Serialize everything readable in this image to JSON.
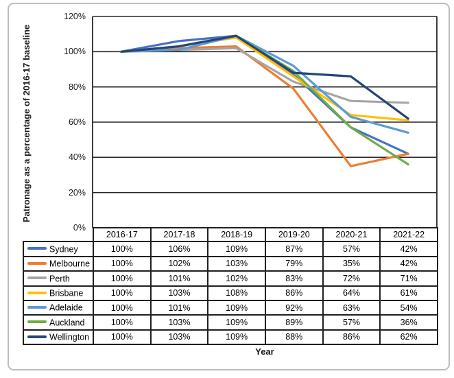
{
  "figure": {
    "background": "#ffffff",
    "border_color": "#bdbdbd"
  },
  "chart_data": {
    "type": "line",
    "title": "",
    "xlabel": "Year",
    "ylabel": "Patronage as a percentage of 2016-17 baseline",
    "categories": [
      "2016-17",
      "2017-18",
      "2018-19",
      "2019-20",
      "2020-21",
      "2021-22"
    ],
    "series": [
      {
        "name": "Sydney",
        "color": "#4472C4",
        "values": [
          100,
          106,
          109,
          87,
          57,
          42
        ]
      },
      {
        "name": "Melbourne",
        "color": "#ED7D31",
        "values": [
          100,
          102,
          103,
          79,
          35,
          42
        ]
      },
      {
        "name": "Perth",
        "color": "#A5A5A5",
        "values": [
          100,
          101,
          102,
          83,
          72,
          71
        ]
      },
      {
        "name": "Brisbane",
        "color": "#FFC000",
        "values": [
          100,
          103,
          108,
          86,
          64,
          61
        ]
      },
      {
        "name": "Adelaide",
        "color": "#5B9BD5",
        "values": [
          100,
          101,
          109,
          92,
          63,
          54
        ]
      },
      {
        "name": "Auckland",
        "color": "#70AD47",
        "values": [
          100,
          103,
          109,
          89,
          57,
          36
        ]
      },
      {
        "name": "Wellington",
        "color": "#264478",
        "values": [
          100,
          103,
          109,
          88,
          86,
          62
        ]
      }
    ],
    "ylim": [
      0,
      120
    ],
    "yticks": [
      0,
      20,
      40,
      60,
      80,
      100,
      120
    ],
    "ytick_suffix": "%",
    "value_suffix": "%",
    "grid": true,
    "grid_color": "#262626",
    "axis_color": "#262626",
    "legend_position": "data-table-left"
  }
}
